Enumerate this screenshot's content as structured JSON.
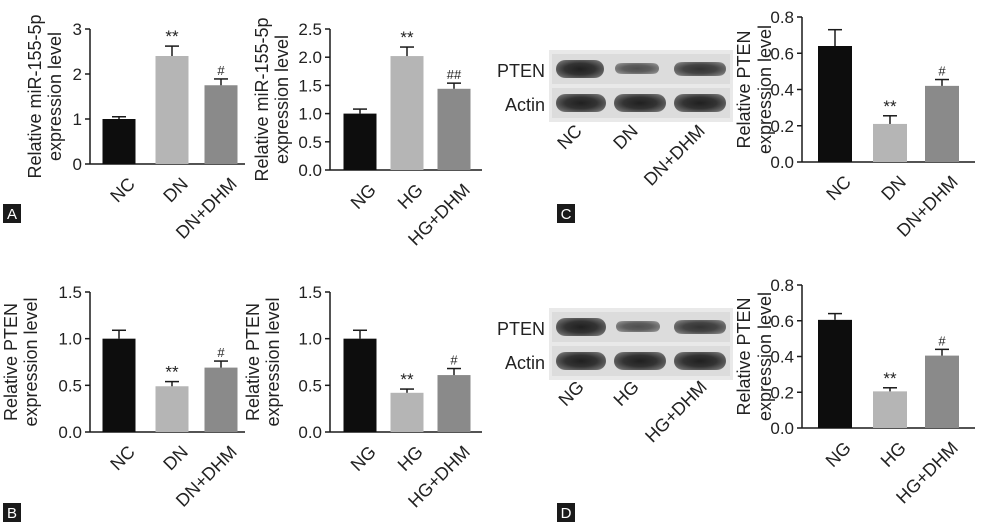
{
  "colors": {
    "black": "#0d0d0d",
    "light_gray": "#b5b5b5",
    "mid_gray": "#8a8a8a",
    "axis": "#1a1a1a"
  },
  "chart_data": [
    {
      "panel": "A",
      "type": "bar",
      "categories": [
        "NC",
        "DN",
        "DN+DHM"
      ],
      "values": [
        1.0,
        2.4,
        1.75
      ],
      "errors": [
        0.05,
        0.22,
        0.14
      ],
      "annotations": [
        "",
        "**",
        "#"
      ],
      "ylabel": [
        "Relative miR-155-5p",
        "expression level"
      ],
      "ylim": [
        0,
        3
      ],
      "yticks": [
        0,
        1,
        2,
        3
      ],
      "tick_format": "int"
    },
    {
      "panel": "",
      "type": "bar",
      "categories": [
        "NG",
        "HG",
        "HG+DHM"
      ],
      "values": [
        1.0,
        2.02,
        1.44
      ],
      "errors": [
        0.08,
        0.16,
        0.1
      ],
      "annotations": [
        "",
        "**",
        "##"
      ],
      "ylabel": [
        "Relative miR-155-5p",
        "expression level"
      ],
      "ylim": [
        0,
        2.5
      ],
      "yticks": [
        0,
        0.5,
        1.0,
        1.5,
        2.0,
        2.5
      ],
      "tick_format": "1dp"
    },
    {
      "panel": "C",
      "type": "bar",
      "categories": [
        "NC",
        "DN",
        "DN+DHM"
      ],
      "values": [
        0.64,
        0.21,
        0.42
      ],
      "errors": [
        0.09,
        0.045,
        0.035
      ],
      "annotations": [
        "",
        "**",
        "#"
      ],
      "ylabel": [
        "Relative PTEN",
        "expression level"
      ],
      "ylim": [
        0,
        0.8
      ],
      "yticks": [
        0,
        0.2,
        0.4,
        0.6,
        0.8
      ],
      "tick_format": "1dp"
    },
    {
      "panel": "B",
      "type": "bar",
      "categories": [
        "NC",
        "DN",
        "DN+DHM"
      ],
      "values": [
        1.0,
        0.49,
        0.69
      ],
      "errors": [
        0.09,
        0.05,
        0.07
      ],
      "annotations": [
        "",
        "**",
        "#"
      ],
      "ylabel": [
        "Relative PTEN",
        "expression level"
      ],
      "ylim": [
        0,
        1.5
      ],
      "yticks": [
        0,
        0.5,
        1.0,
        1.5
      ],
      "tick_format": "1dp"
    },
    {
      "panel": "",
      "type": "bar",
      "categories": [
        "NG",
        "HG",
        "HG+DHM"
      ],
      "values": [
        1.0,
        0.42,
        0.61
      ],
      "errors": [
        0.09,
        0.04,
        0.07
      ],
      "annotations": [
        "",
        "**",
        "#"
      ],
      "ylabel": [
        "Relative PTEN",
        "expression level"
      ],
      "ylim": [
        0,
        1.5
      ],
      "yticks": [
        0,
        0.5,
        1.0,
        1.5
      ],
      "tick_format": "1dp"
    },
    {
      "panel": "D",
      "type": "bar",
      "categories": [
        "NG",
        "HG",
        "HG+DHM"
      ],
      "values": [
        0.605,
        0.205,
        0.405
      ],
      "errors": [
        0.035,
        0.02,
        0.035
      ],
      "annotations": [
        "",
        "**",
        "#"
      ],
      "ylabel": [
        "Relative PTEN",
        "expression level"
      ],
      "ylim": [
        0,
        0.8
      ],
      "yticks": [
        0,
        0.2,
        0.4,
        0.6,
        0.8
      ],
      "tick_format": "1dp"
    }
  ],
  "blots": [
    {
      "rows": [
        "PTEN",
        "Actin"
      ],
      "lanes": [
        "NC",
        "DN",
        "DN+DHM"
      ]
    },
    {
      "rows": [
        "PTEN",
        "Actin"
      ],
      "lanes": [
        "NG",
        "HG",
        "HG+DHM"
      ]
    }
  ]
}
